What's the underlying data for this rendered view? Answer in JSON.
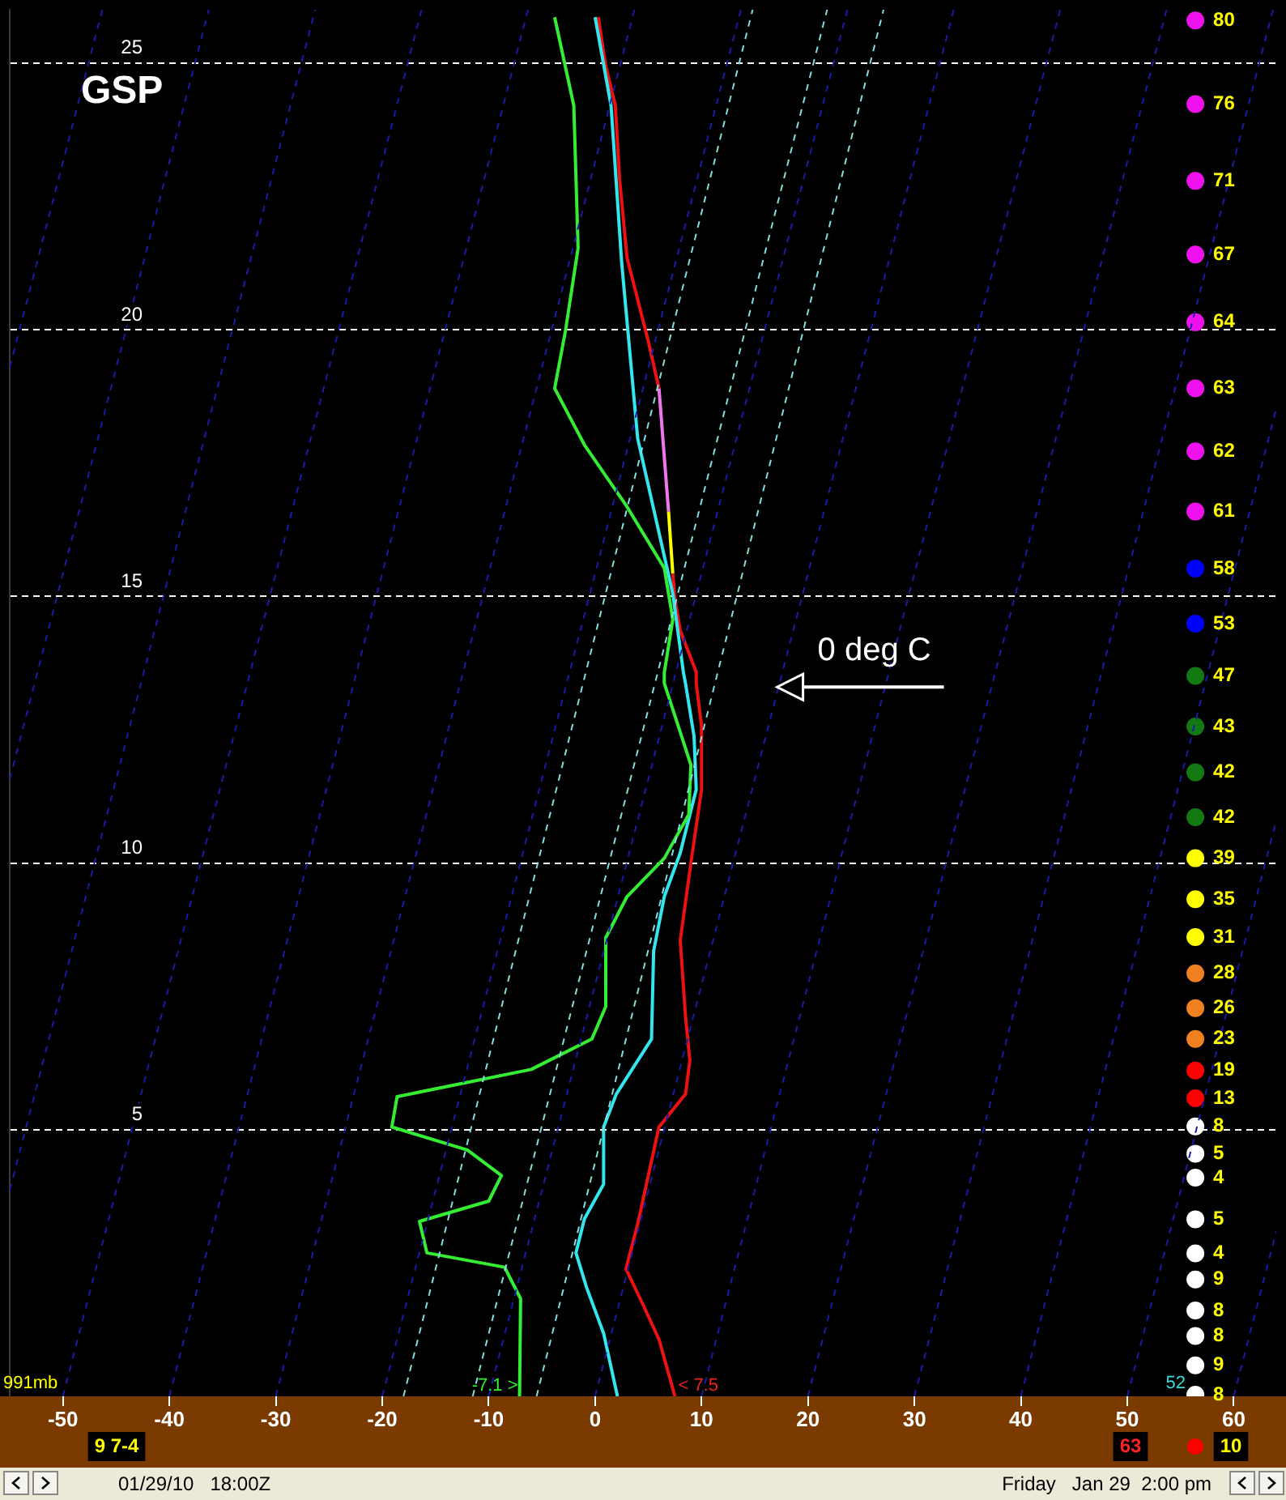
{
  "chart_data": {
    "type": "line",
    "title": "GSP",
    "xlim": [
      -55,
      64
    ],
    "xticks": [
      -50,
      -40,
      -30,
      -20,
      -10,
      0,
      10,
      20,
      30,
      40,
      50,
      60
    ],
    "ylim": [
      0,
      26
    ],
    "yticks": [
      5,
      10,
      15,
      20,
      25
    ],
    "grid": "y",
    "legend": false,
    "marker": "none",
    "series": [
      {
        "type": "line",
        "color": "#1a1aa8",
        "line_style": "dashed",
        "x": [
          -55,
          -46.3
        ],
        "values": [
          19.29,
          26
        ]
      },
      {
        "type": "line",
        "color": "#1a1aa8",
        "line_style": "dashed",
        "x": [
          -55,
          -36.3
        ],
        "values": [
          11.57,
          26
        ]
      },
      {
        "type": "line",
        "color": "#1a1aa8",
        "line_style": "dashed",
        "x": [
          -55,
          -26.3
        ],
        "values": [
          3.86,
          26
        ]
      },
      {
        "type": "line",
        "color": "#1a1aa8",
        "line_style": "dashed",
        "x": [
          -50,
          -16.3
        ],
        "values": [
          0,
          26
        ]
      },
      {
        "type": "line",
        "color": "#1a1aa8",
        "line_style": "dashed",
        "x": [
          -40,
          -6.3
        ],
        "values": [
          0,
          26
        ]
      },
      {
        "type": "line",
        "color": "#1a1aa8",
        "line_style": "dashed",
        "x": [
          -30,
          3.7
        ],
        "values": [
          0,
          26
        ]
      },
      {
        "type": "line",
        "color": "#1a1aa8",
        "line_style": "dashed",
        "x": [
          -20,
          13.7
        ],
        "values": [
          0,
          26
        ]
      },
      {
        "type": "line",
        "color": "#1a1aa8",
        "line_style": "dashed",
        "x": [
          -10,
          23.7
        ],
        "values": [
          0,
          26
        ]
      },
      {
        "type": "line",
        "color": "#1a1aa8",
        "line_style": "dashed",
        "x": [
          0,
          33.7
        ],
        "values": [
          0,
          26
        ]
      },
      {
        "type": "line",
        "color": "#1a1aa8",
        "line_style": "dashed",
        "x": [
          10,
          43.7
        ],
        "values": [
          0,
          26
        ]
      },
      {
        "type": "line",
        "color": "#1a1aa8",
        "line_style": "dashed",
        "x": [
          20,
          53.7
        ],
        "values": [
          0,
          26
        ]
      },
      {
        "type": "line",
        "color": "#1a1aa8",
        "line_style": "dashed",
        "x": [
          30,
          63.7
        ],
        "values": [
          0,
          26
        ]
      },
      {
        "type": "line",
        "color": "#1a1aa8",
        "line_style": "dashed",
        "x": [
          40,
          64
        ],
        "values": [
          0,
          18.52
        ]
      },
      {
        "type": "line",
        "color": "#1a1aa8",
        "line_style": "dashed",
        "x": [
          50,
          64
        ],
        "values": [
          0,
          10.8
        ]
      },
      {
        "type": "line",
        "color": "#1a1aa8",
        "line_style": "dashed",
        "x": [
          60,
          64
        ],
        "values": [
          0,
          3.09
        ]
      },
      {
        "type": "line",
        "color": "#7fe0e0",
        "line_style": "dashed",
        "x": [
          -18,
          14.8
        ],
        "values": [
          0,
          26
        ]
      },
      {
        "type": "line",
        "color": "#7fe0e0",
        "line_style": "dashed",
        "x": [
          -11.5,
          21.8
        ],
        "values": [
          0,
          26
        ]
      },
      {
        "type": "line",
        "color": "#7fe0e0",
        "line_style": "dashed",
        "x": [
          -5.5,
          27.1
        ],
        "values": [
          0,
          26
        ]
      },
      {
        "type": "line",
        "color": "#33ee33",
        "x": [
          -7.1,
          -7.0,
          -8.5,
          -15.8,
          -16.5,
          -10.0,
          -8.8,
          -12.0,
          -19.1,
          -18.6,
          -6.0,
          -0.3,
          1.0,
          1.0,
          3.0,
          6.5,
          8.8,
          9.0,
          7.3,
          6.5,
          6.5,
          7.3,
          6.5,
          3.0,
          -1.0,
          -3.8,
          -2.8,
          -1.6,
          -2.0,
          -3.8
        ],
        "values": [
          0,
          1.83,
          2.42,
          2.69,
          3.28,
          3.66,
          4.14,
          4.62,
          5.05,
          5.62,
          6.13,
          6.7,
          7.31,
          8.6,
          9.37,
          10.09,
          10.91,
          11.84,
          12.88,
          13.37,
          13.57,
          14.57,
          15.53,
          16.68,
          17.84,
          18.9,
          19.96,
          21.53,
          24.2,
          25.86
        ]
      },
      {
        "type": "line",
        "color": "#33e6ee",
        "x": [
          2.1,
          0.8,
          -0.8,
          -1.8,
          -1.0,
          0.8,
          0.8,
          2.0,
          5.3,
          5.5,
          6.5,
          8.0,
          9.5,
          9.3,
          8.5,
          8.3,
          7.3,
          4.0,
          2.5,
          1.5,
          0.0
        ],
        "values": [
          0,
          1.18,
          2.04,
          2.69,
          3.33,
          3.98,
          5.05,
          5.67,
          6.7,
          8.35,
          9.37,
          10.19,
          11.38,
          12.37,
          13.36,
          13.57,
          15.05,
          17.96,
          21.25,
          24.2,
          25.86
        ]
      },
      {
        "type": "line",
        "color": "#ee1111",
        "x": [
          7.5,
          6.0,
          4.5,
          2.9,
          4.0,
          6.0,
          8.5,
          8.9,
          8.5,
          8.0,
          9.0,
          10.0,
          10.0,
          9.5,
          9.5,
          8.0,
          7.5,
          7.3,
          null,
          6.0,
          5.0,
          3.0,
          2.3,
          1.9,
          1.0,
          0.3
        ],
        "values": [
          0,
          1.07,
          1.72,
          2.39,
          3.23,
          5.05,
          5.67,
          6.3,
          7.11,
          8.55,
          10.0,
          11.38,
          12.57,
          13.37,
          13.58,
          14.36,
          14.95,
          15.43,
          null,
          18.9,
          19.78,
          21.35,
          22.82,
          24.2,
          24.94,
          25.86
        ]
      },
      {
        "type": "line",
        "color": "#ffff00",
        "x": [
          7.3,
          6.9
        ],
        "values": [
          15.43,
          16.59
        ]
      },
      {
        "type": "line",
        "color": "#ee77ee",
        "x": [
          6.9,
          6.0
        ],
        "values": [
          16.59,
          18.9
        ]
      },
      {
        "type": "scatter",
        "marker": "circle",
        "x": [
          56.4,
          56.4,
          56.4,
          56.4,
          56.4,
          56.4,
          56.4,
          56.4,
          56.4,
          56.4,
          56.4,
          56.4,
          56.4,
          56.4,
          56.4,
          56.4,
          56.4,
          56.4,
          56.4,
          56.4,
          56.4,
          56.4,
          56.4,
          56.4,
          56.4,
          56.4,
          56.4,
          56.4,
          56.4,
          56.4,
          56.4,
          56.4
        ],
        "values": [
          25.8,
          24.23,
          22.79,
          21.41,
          20.14,
          18.9,
          17.72,
          16.59,
          15.52,
          14.49,
          13.51,
          12.56,
          11.7,
          10.86,
          10.09,
          9.32,
          8.61,
          7.93,
          7.28,
          6.7,
          6.11,
          5.59,
          5.06,
          4.55,
          4.1,
          3.32,
          2.68,
          2.19,
          1.61,
          1.13,
          0.58,
          0.03
        ],
        "colors": [
          "#ee11ee",
          "#ee11ee",
          "#ee11ee",
          "#ee11ee",
          "#ee11ee",
          "#ee11ee",
          "#ee11ee",
          "#ee11ee",
          "#0000ff",
          "#0000ff",
          "#137a13",
          "#137a13",
          "#137a13",
          "#137a13",
          "#ffff00",
          "#ffff00",
          "#ffff00",
          "#f08020",
          "#f08020",
          "#f08020",
          "#ff0000",
          "#ff0000",
          "#ffffff",
          "#ffffff",
          "#ffffff",
          "#ffffff",
          "#ffffff",
          "#ffffff",
          "#ffffff",
          "#ffffff",
          "#ffffff",
          "#ffffff"
        ]
      }
    ],
    "annotations": [
      {
        "text": "0 deg C",
        "x": 17.1,
        "y": 13.3
      },
      {
        "text": "-7.1 >",
        "x": -7.1,
        "y": 0
      },
      {
        "text": "< 7.5",
        "x": 7.5,
        "y": 0
      },
      {
        "text": "80",
        "x": 56.4,
        "y": 25.8
      },
      {
        "text": "76",
        "x": 56.4,
        "y": 24.23
      },
      {
        "text": "71",
        "x": 56.4,
        "y": 22.79
      },
      {
        "text": "67",
        "x": 56.4,
        "y": 21.41
      },
      {
        "text": "64",
        "x": 56.4,
        "y": 20.14
      },
      {
        "text": "63",
        "x": 56.4,
        "y": 18.9
      },
      {
        "text": "62",
        "x": 56.4,
        "y": 17.72
      },
      {
        "text": "61",
        "x": 56.4,
        "y": 16.59
      },
      {
        "text": "58",
        "x": 56.4,
        "y": 15.52
      },
      {
        "text": "53",
        "x": 56.4,
        "y": 14.49
      },
      {
        "text": "47",
        "x": 56.4,
        "y": 13.51
      },
      {
        "text": "43",
        "x": 56.4,
        "y": 12.56
      },
      {
        "text": "42",
        "x": 56.4,
        "y": 11.7
      },
      {
        "text": "42",
        "x": 56.4,
        "y": 10.86
      },
      {
        "text": "39",
        "x": 56.4,
        "y": 10.09
      },
      {
        "text": "35",
        "x": 56.4,
        "y": 9.32
      },
      {
        "text": "31",
        "x": 56.4,
        "y": 8.61
      },
      {
        "text": "28",
        "x": 56.4,
        "y": 7.93
      },
      {
        "text": "26",
        "x": 56.4,
        "y": 7.28
      },
      {
        "text": "23",
        "x": 56.4,
        "y": 6.7
      },
      {
        "text": "19",
        "x": 56.4,
        "y": 6.11
      },
      {
        "text": "13",
        "x": 56.4,
        "y": 5.59
      },
      {
        "text": "8",
        "x": 56.4,
        "y": 5.06
      },
      {
        "text": "5",
        "x": 56.4,
        "y": 4.55
      },
      {
        "text": "4",
        "x": 56.4,
        "y": 4.1
      },
      {
        "text": "5",
        "x": 56.4,
        "y": 3.32
      },
      {
        "text": "4",
        "x": 56.4,
        "y": 2.68
      },
      {
        "text": "9",
        "x": 56.4,
        "y": 2.19
      },
      {
        "text": "8",
        "x": 56.4,
        "y": 1.61
      },
      {
        "text": "8",
        "x": 56.4,
        "y": 1.13
      },
      {
        "text": "9",
        "x": 56.4,
        "y": 0.58
      },
      {
        "text": "8",
        "x": 56.4,
        "y": 0.03
      },
      "991mb",
      "9 7-4",
      "52",
      "63",
      "10",
      "01/29/10   18:00Z",
      "Friday   Jan 29  2:00 pm"
    ]
  }
}
